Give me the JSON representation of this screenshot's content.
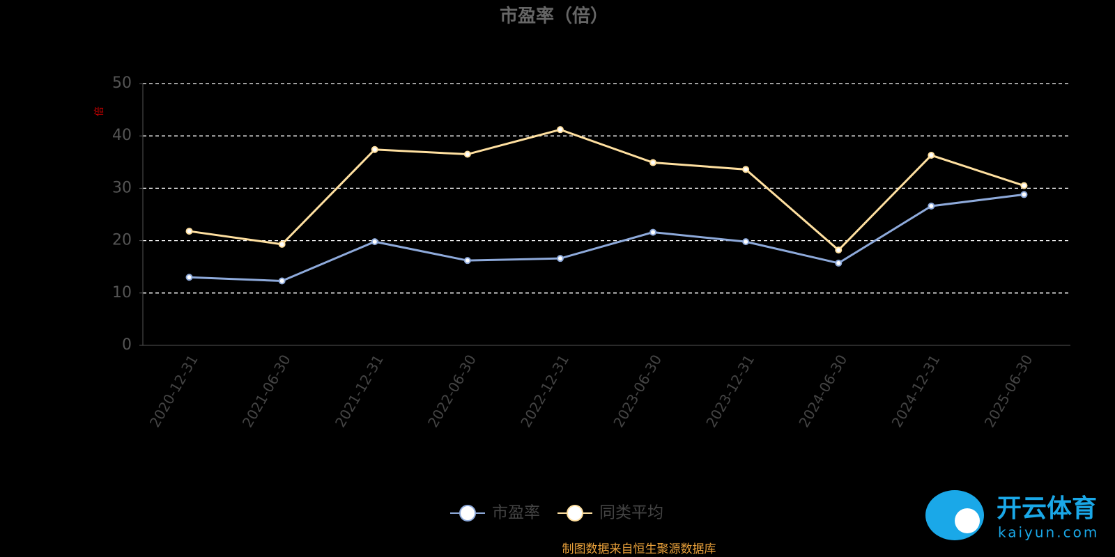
{
  "chart_data": {
    "type": "line",
    "title": "市盈率（倍）",
    "y_label": "倍",
    "categories": [
      "2020-12-31",
      "2021-06-30",
      "2021-12-31",
      "2022-06-30",
      "2022-12-31",
      "2023-06-30",
      "2023-12-31",
      "2024-06-30",
      "2024-12-31",
      "2025-06-30"
    ],
    "series": [
      {
        "name": "市盈率",
        "color": "#8eaadb",
        "values": [
          13.0,
          12.3,
          19.8,
          16.2,
          16.6,
          21.6,
          19.8,
          15.7,
          26.6,
          28.8
        ]
      },
      {
        "name": "同类平均",
        "color": "#ffe0a0",
        "values": [
          21.8,
          19.3,
          37.4,
          36.5,
          41.2,
          34.9,
          33.6,
          18.2,
          36.3,
          30.5
        ]
      }
    ],
    "ylim": [
      0,
      50
    ],
    "yticks": [
      0,
      10,
      20,
      30,
      40,
      50
    ],
    "grid": true,
    "source": "制图数据来自恒生聚源数据库",
    "watermark": {
      "brand": "开云体育",
      "site": "kaiyun.com"
    }
  }
}
